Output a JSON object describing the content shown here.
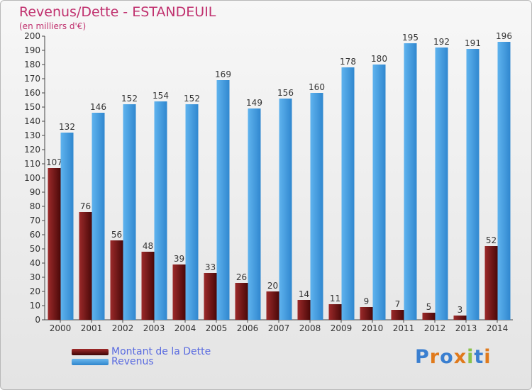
{
  "title": "Revenus/Dette - ESTANDEUIL",
  "subtitle": "(en milliers d'€)",
  "colors": {
    "dette": "#7a1c1c",
    "revenus": "#4a9fe0"
  },
  "legend": {
    "dette": "Montant de la Dette",
    "revenus": "Revenus"
  },
  "logo": "Proxiti",
  "chart_data": {
    "type": "bar",
    "title": "Revenus/Dette - ESTANDEUIL",
    "subtitle": "(en milliers d'€)",
    "categories": [
      "2000",
      "2001",
      "2002",
      "2003",
      "2004",
      "2005",
      "2006",
      "2007",
      "2008",
      "2009",
      "2010",
      "2011",
      "2012",
      "2013",
      "2014"
    ],
    "series": [
      {
        "name": "Montant de la Dette",
        "values": [
          107,
          76,
          56,
          48,
          39,
          33,
          26,
          20,
          14,
          11,
          9,
          7,
          5,
          3,
          52
        ]
      },
      {
        "name": "Revenus",
        "values": [
          132,
          146,
          152,
          154,
          152,
          169,
          149,
          156,
          160,
          178,
          180,
          195,
          192,
          191,
          196
        ]
      }
    ],
    "ylim": [
      0,
      200
    ],
    "yticks": [
      0,
      10,
      20,
      30,
      40,
      50,
      60,
      70,
      80,
      90,
      100,
      110,
      120,
      130,
      140,
      150,
      160,
      170,
      180,
      190,
      200
    ],
    "grid": false,
    "legend_position": "bottom-left"
  }
}
